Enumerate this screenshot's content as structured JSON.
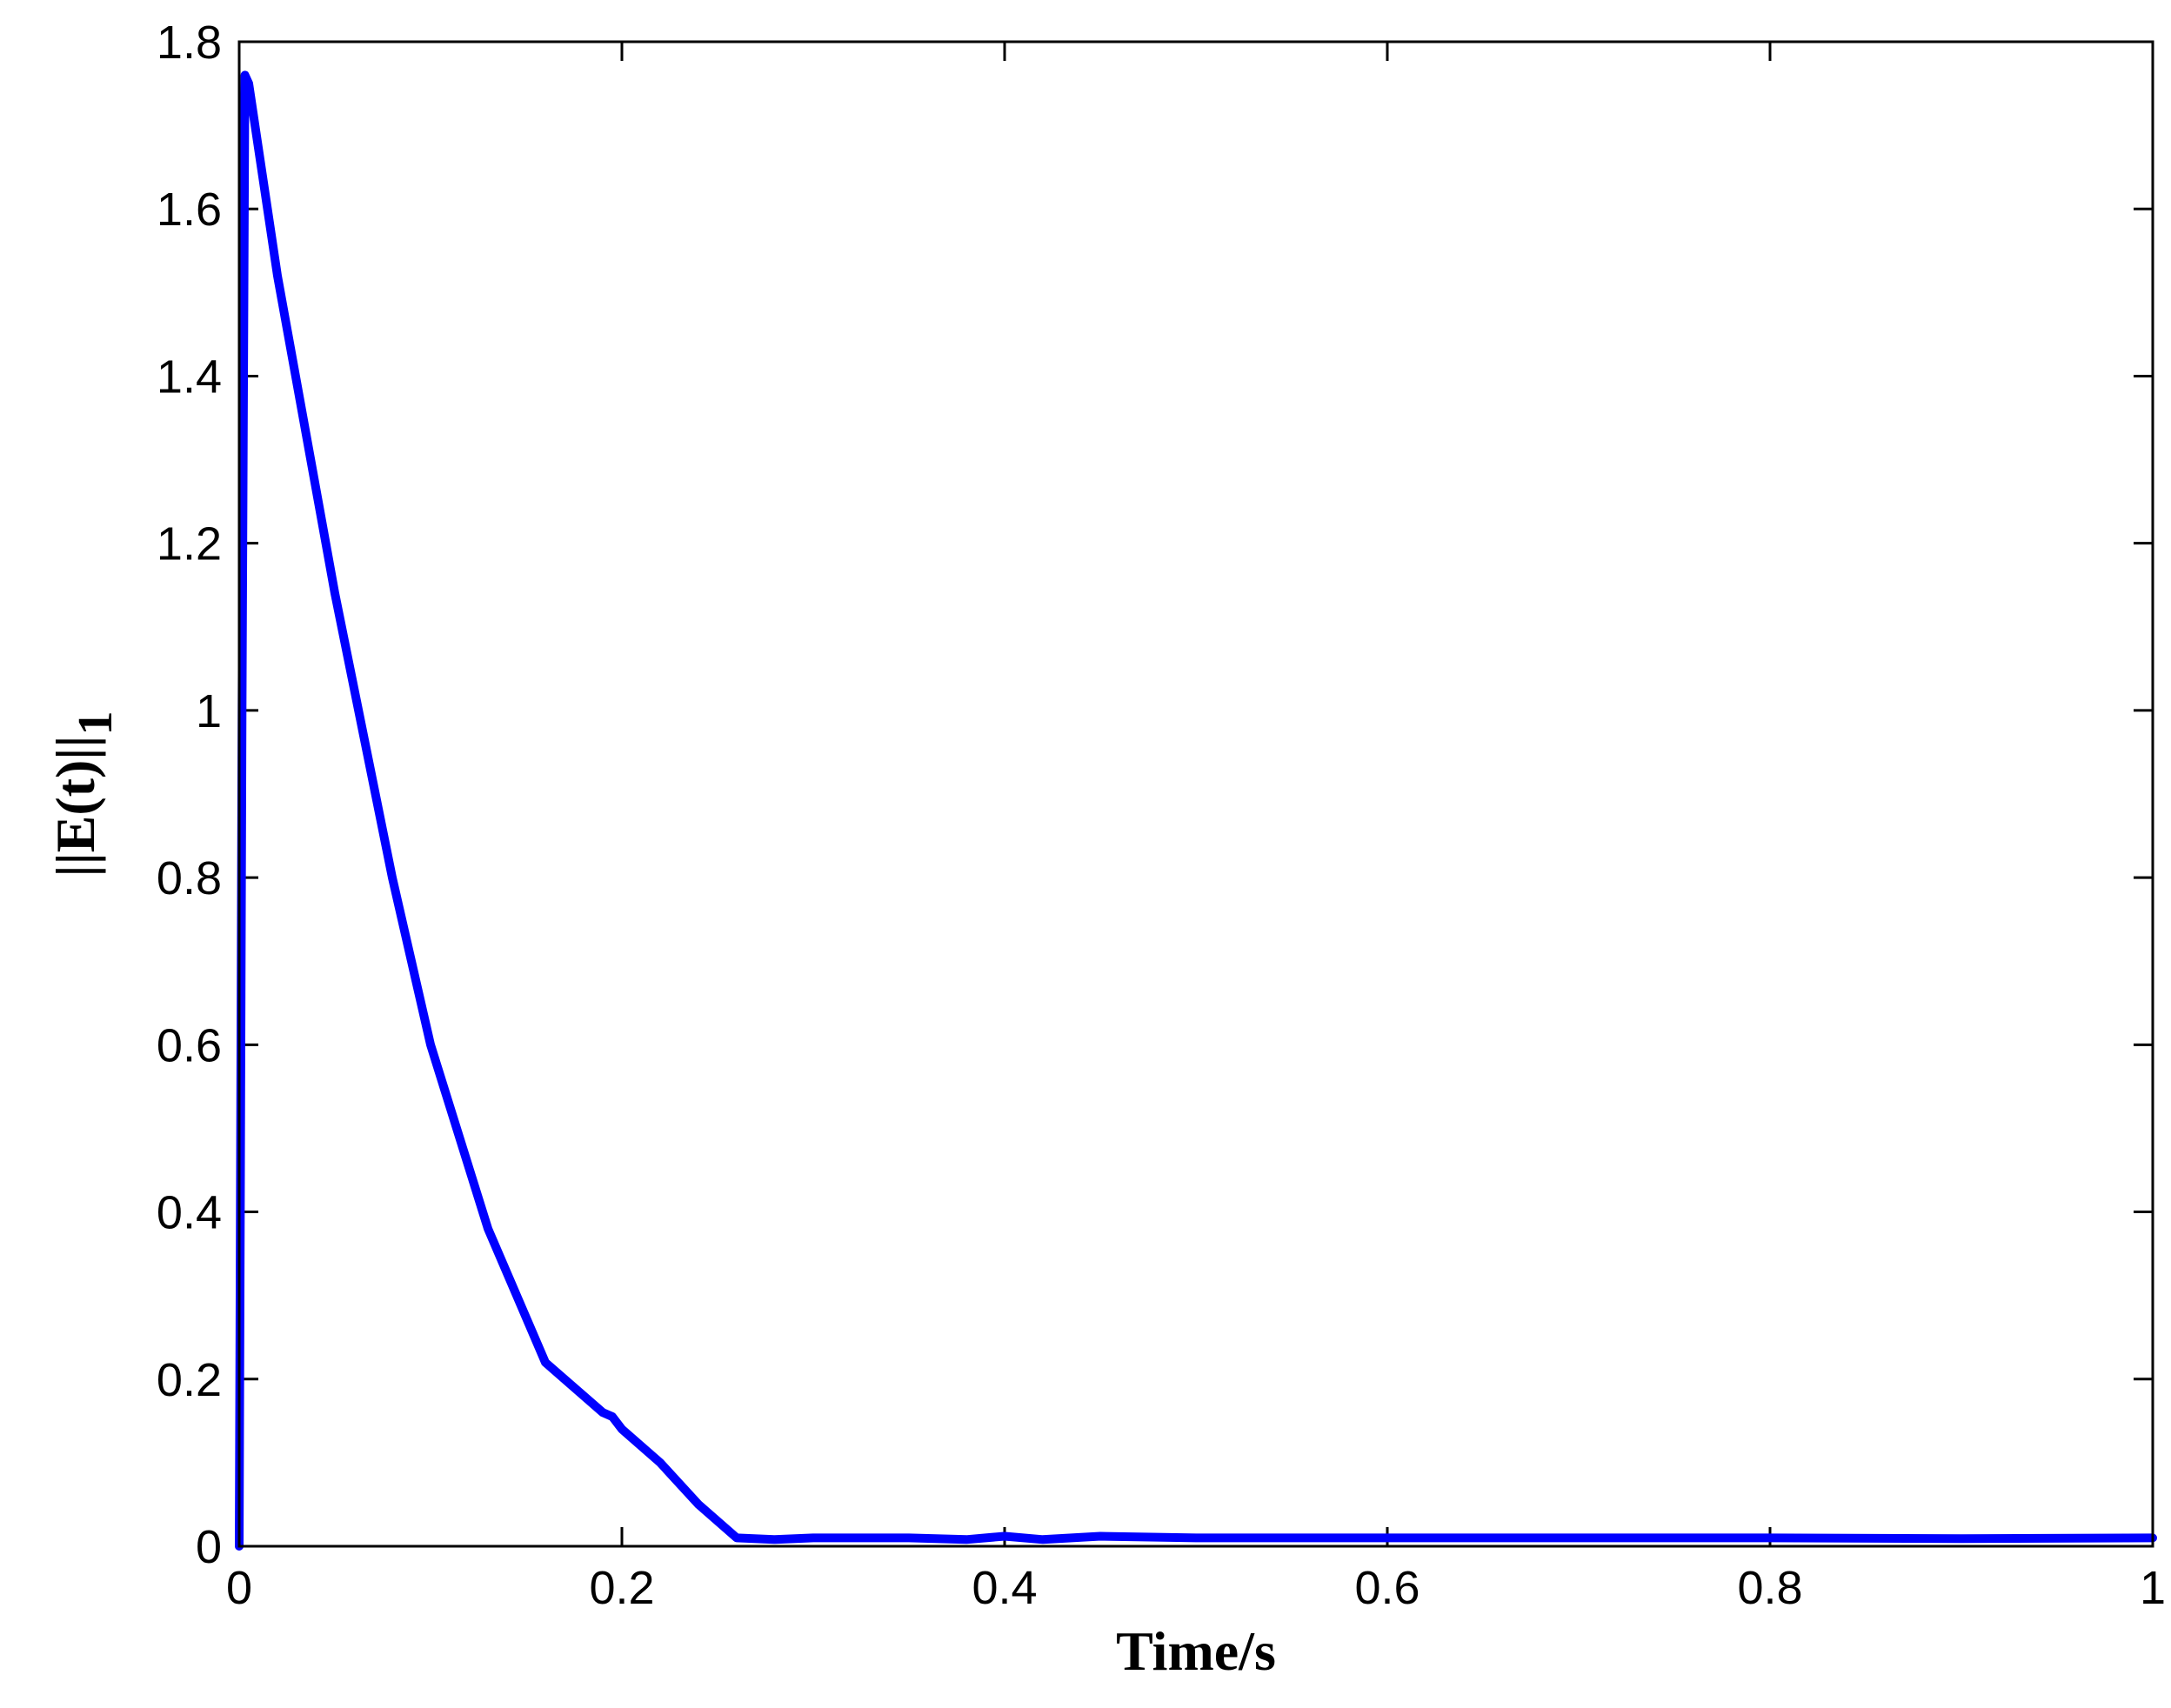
{
  "chart_data": {
    "type": "line",
    "title": "",
    "xlabel": "Time/s",
    "ylabel_main": "||E(t)||",
    "ylabel_sub": "1",
    "xlim": [
      0,
      1
    ],
    "ylim": [
      0,
      1.8
    ],
    "xticks": [
      0,
      0.2,
      0.4,
      0.6,
      0.8,
      1
    ],
    "xtick_labels": [
      "0",
      "0.2",
      "0.4",
      "0.6",
      "0.8",
      "1"
    ],
    "yticks": [
      0,
      0.2,
      0.4,
      0.6,
      0.8,
      1,
      1.2,
      1.4,
      1.6,
      1.8
    ],
    "ytick_labels": [
      "0",
      "0.2",
      "0.4",
      "0.6",
      "0.8",
      "1",
      "1.2",
      "1.4",
      "1.6",
      "1.8"
    ],
    "grid": false,
    "series": [
      {
        "color": "#0000ff",
        "x": [
          0,
          0.0015,
          0.003,
          0.005,
          0.02,
          0.05,
          0.08,
          0.1,
          0.13,
          0.16,
          0.19,
          0.195,
          0.2,
          0.22,
          0.24,
          0.255,
          0.26,
          0.28,
          0.3,
          0.35,
          0.38,
          0.4,
          0.42,
          0.45,
          0.5,
          0.6,
          0.7,
          0.8,
          0.9,
          1.0
        ],
        "y": [
          0,
          1.0,
          1.76,
          1.75,
          1.52,
          1.14,
          0.8,
          0.6,
          0.38,
          0.22,
          0.16,
          0.155,
          0.14,
          0.1,
          0.05,
          0.02,
          0.01,
          0.008,
          0.01,
          0.01,
          0.008,
          0.012,
          0.008,
          0.012,
          0.01,
          0.01,
          0.01,
          0.01,
          0.009,
          0.01
        ]
      }
    ]
  }
}
